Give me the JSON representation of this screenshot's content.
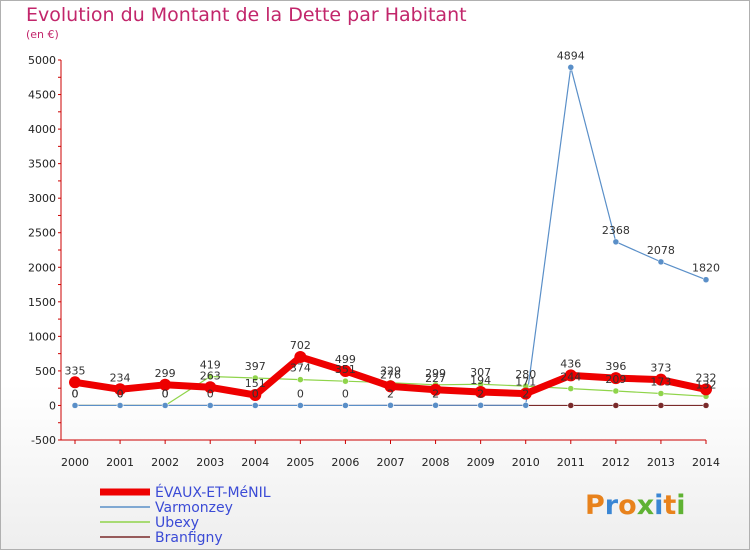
{
  "header": {
    "title": "Evolution du Montant de la Dette par Habitant",
    "subtitle": "(en €)"
  },
  "logo": {
    "text": "Proxiti",
    "colors": [
      "#e8821c",
      "#3a86d4",
      "#e8821c",
      "#5fb233",
      "#3a86d4",
      "#e8821c",
      "#5fb233"
    ]
  },
  "chart_data": {
    "type": "line",
    "x": [
      "2000",
      "2001",
      "2002",
      "2003",
      "2004",
      "2005",
      "2006",
      "2007",
      "2008",
      "2009",
      "2010",
      "2011",
      "2012",
      "2013",
      "2014"
    ],
    "ylim": [
      -500,
      5000
    ],
    "yticks": [
      "-500",
      "0",
      "500",
      "1000",
      "1500",
      "2000",
      "2500",
      "3000",
      "3500",
      "4000",
      "4500",
      "5000"
    ],
    "grid": false,
    "legend": "bottom-left",
    "series": [
      {
        "name": "Branfigny",
        "color": "#7a2a2a",
        "values": [
          0,
          0,
          0,
          0,
          0,
          0,
          0,
          0,
          0,
          0,
          0,
          0,
          0,
          0,
          0
        ],
        "labels": [
          "",
          "",
          "",
          "",
          "",
          "",
          "",
          "",
          "",
          "",
          "",
          "",
          "",
          "",
          ""
        ]
      },
      {
        "name": "Ubexy",
        "color": "#8fd44a",
        "values": [
          0,
          0,
          0,
          419,
          397,
          374,
          351,
          329,
          299,
          307,
          280,
          244,
          209,
          173,
          132
        ],
        "labels": [
          "0",
          "0",
          "0",
          "419",
          "397",
          "374",
          "351",
          "329",
          "299",
          "307",
          "280",
          "244",
          "209",
          "173",
          "132"
        ]
      },
      {
        "name": "Varmonzey",
        "color": "#5a8fc8",
        "values": [
          0,
          0,
          0,
          0,
          0,
          0,
          0,
          2,
          2,
          2,
          2,
          4894,
          2368,
          2078,
          1820
        ],
        "labels": [
          "0",
          "0",
          "0",
          "0",
          "0",
          "0",
          "0",
          "2",
          "2",
          "2",
          "2",
          "4894",
          "2368",
          "2078",
          "1820"
        ]
      },
      {
        "name": "ÉVAUX-ET-MéNIL",
        "color": "#ee0000",
        "values": [
          335,
          234,
          299,
          263,
          151,
          702,
          499,
          276,
          227,
          194,
          171,
          436,
          396,
          373,
          232
        ],
        "labels": [
          "335",
          "234",
          "299",
          "263",
          "151",
          "702",
          "499",
          "276",
          "227",
          "194",
          "171",
          "436",
          "396",
          "373",
          "232"
        ]
      }
    ],
    "legend_entries": [
      "ÉVAUX-ET-MéNIL",
      "Varmonzey",
      "Ubexy",
      "Branfigny"
    ]
  }
}
